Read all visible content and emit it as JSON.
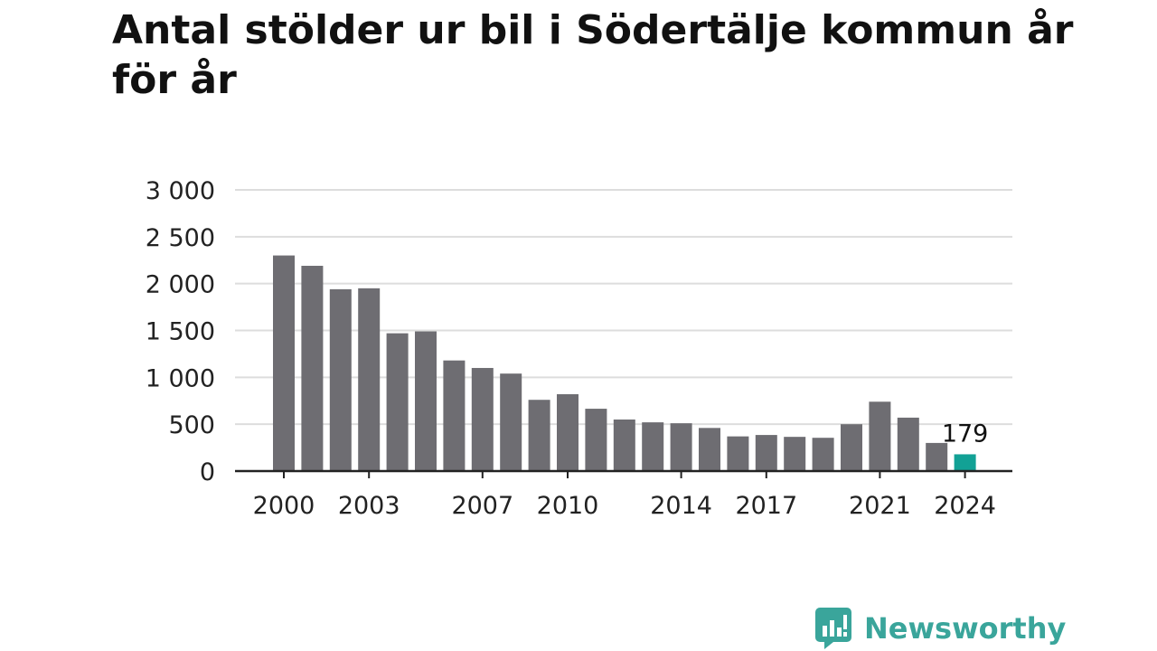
{
  "chart_data": {
    "type": "bar",
    "title": "Antal stölder ur bil i Södertälje kommun år för år",
    "categories": [
      "2000",
      "2001",
      "2002",
      "2003",
      "2004",
      "2005",
      "2006",
      "2007",
      "2008",
      "2009",
      "2010",
      "2011",
      "2012",
      "2013",
      "2014",
      "2015",
      "2016",
      "2017",
      "2018",
      "2019",
      "2020",
      "2021",
      "2022",
      "2023",
      "2024"
    ],
    "values": [
      2300,
      2190,
      1940,
      1950,
      1470,
      1490,
      1180,
      1100,
      1040,
      760,
      820,
      665,
      550,
      520,
      510,
      460,
      370,
      385,
      365,
      355,
      500,
      740,
      570,
      300,
      179
    ],
    "x_tick_labels": [
      "2000",
      "2003",
      "2007",
      "2010",
      "2014",
      "2017",
      "2021",
      "2024"
    ],
    "y_tick_values": [
      0,
      500,
      1000,
      1500,
      2000,
      2500,
      3000
    ],
    "y_tick_labels": [
      "0",
      "500",
      "1 000",
      "1 500",
      "2 000",
      "2 500",
      "3 000"
    ],
    "ylim": [
      0,
      3000
    ],
    "grid": true,
    "xlabel": "",
    "ylabel": "",
    "annotations": [
      {
        "category": "2024",
        "text": "179"
      }
    ],
    "colors": {
      "bar": "#6e6d72",
      "highlight": "#12a195",
      "grid": "#dddddd",
      "axis": "#222222"
    },
    "highlight_category": "2024"
  },
  "brand": {
    "name": "Newsworthy",
    "icon": "newsworthy-logo-icon",
    "color": "#3aa59b"
  }
}
